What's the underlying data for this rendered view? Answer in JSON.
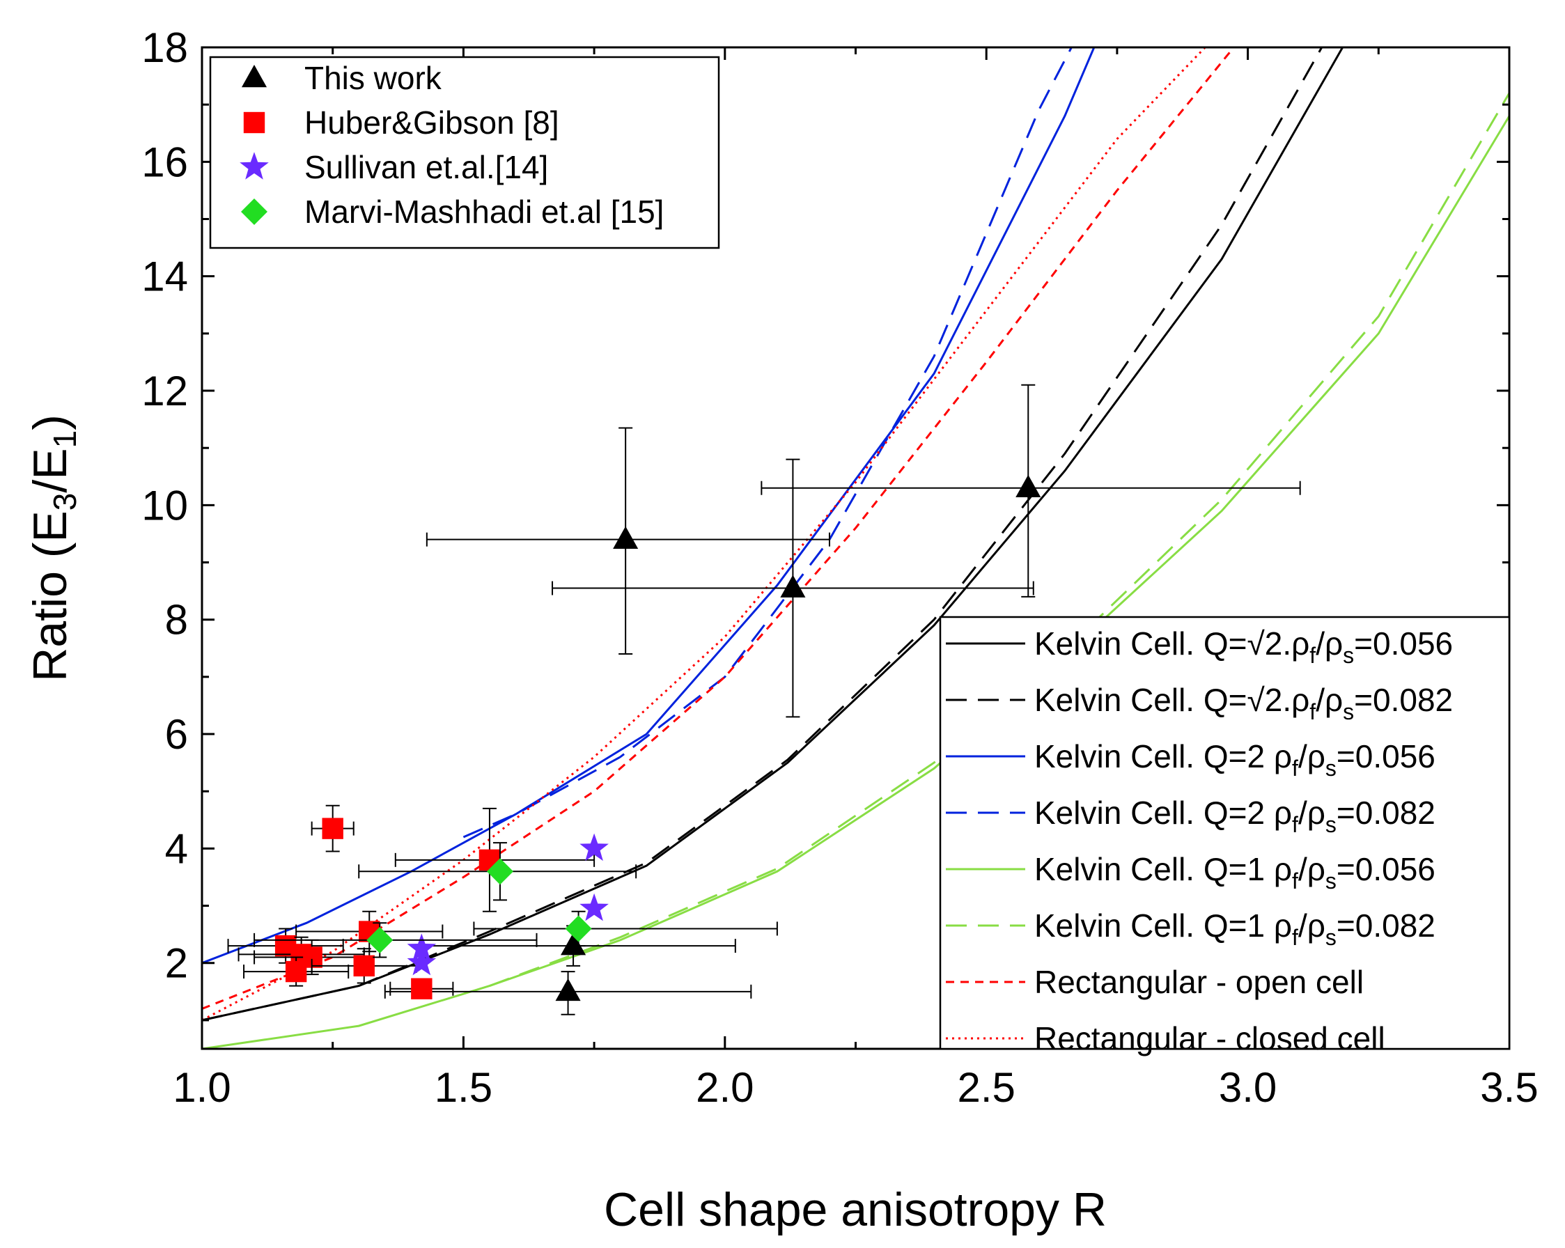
{
  "chart_data": {
    "type": "scatter",
    "xlabel": "Cell shape anisotropy R",
    "ylabel": "Ratio (E3/E1)",
    "ylabel_parts": {
      "main": "Ratio (E",
      "sub1": "3",
      "mid": "/E",
      "sub2": "1",
      "end": ")"
    },
    "xlim": [
      1.0,
      3.5
    ],
    "ylim": [
      0.5,
      18
    ],
    "xticks": [
      1.0,
      1.5,
      2.0,
      2.5,
      3.0,
      3.5
    ],
    "xtick_labels": [
      "1.0",
      "1.5",
      "2.0",
      "2.5",
      "3.0",
      "3.5"
    ],
    "yticks": [
      2,
      4,
      6,
      8,
      10,
      12,
      14,
      16,
      18
    ],
    "ytick_labels": [
      "2",
      "4",
      "6",
      "8",
      "10",
      "12",
      "14",
      "16",
      "18"
    ],
    "grid": false,
    "point_legend": {
      "placement": "top-left",
      "entries": [
        {
          "label": "This work",
          "marker": "triangle",
          "color": "#000000"
        },
        {
          "label": "Huber&Gibson [8]",
          "marker": "square",
          "color": "#ff0000"
        },
        {
          "label": "Sullivan et.al.[14]",
          "marker": "star",
          "color": "#6a2bff"
        },
        {
          "label": "Marvi-Mashhadi et.al [15]",
          "marker": "diamond",
          "color": "#22dd22"
        }
      ]
    },
    "line_legend": {
      "placement": "bottom-right",
      "entries": [
        {
          "prefix": "Kelvin Cell. Q=",
          "q": "√2.",
          "suffix": "0.056",
          "color": "#000000",
          "dash": "solid"
        },
        {
          "prefix": "Kelvin Cell. Q=",
          "q": "√2.",
          "suffix": "0.082",
          "color": "#000000",
          "dash": "dashed"
        },
        {
          "prefix": "Kelvin Cell. Q=",
          "q": "2 ",
          "suffix": "0.056",
          "color": "#0022dd",
          "dash": "solid"
        },
        {
          "prefix": "Kelvin Cell. Q=",
          "q": "2 ",
          "suffix": "0.082",
          "color": "#0022dd",
          "dash": "dashed"
        },
        {
          "prefix": "Kelvin Cell. Q=",
          "q": "1 ",
          "suffix": "0.056",
          "color": "#88dd44",
          "dash": "solid"
        },
        {
          "prefix": "Kelvin Cell. Q=",
          "q": "1 ",
          "suffix": "0.082",
          "color": "#88dd44",
          "dash": "dashed"
        },
        {
          "text": "Rectangular - open cell",
          "color": "#ff0000",
          "dash": "short-dash"
        },
        {
          "text": "Rectangular - closed cell",
          "color": "#ff0000",
          "dash": "dotted"
        }
      ]
    },
    "rho_label": {
      "rho": "ρ",
      "f": "f",
      "slash": "/",
      "s": "s",
      "eq": "="
    },
    "scatter_series": [
      {
        "name": "This work",
        "marker": "triangle",
        "color": "#000000",
        "points": [
          {
            "x": 1.81,
            "y": 9.4,
            "xerr": [
              1.43,
              2.2
            ],
            "yerr": [
              7.4,
              11.35
            ]
          },
          {
            "x": 2.13,
            "y": 8.55,
            "xerr": [
              1.67,
              2.59
            ],
            "yerr": [
              6.3,
              10.8
            ]
          },
          {
            "x": 2.58,
            "y": 10.3,
            "xerr": [
              2.07,
              3.1
            ],
            "yerr": [
              8.4,
              12.1
            ]
          },
          {
            "x": 1.71,
            "y": 2.3,
            "xerr": [
              1.42,
              2.02
            ],
            "yerr": [
              1.95,
              2.65
            ]
          },
          {
            "x": 1.7,
            "y": 1.5,
            "xerr": [
              1.35,
              2.05
            ],
            "yerr": [
              1.1,
              1.85
            ]
          }
        ]
      },
      {
        "name": "Huber&Gibson [8]",
        "marker": "square",
        "color": "#ff0000",
        "points": [
          {
            "x": 1.25,
            "y": 4.35,
            "xerr": [
              1.21,
              1.29
            ],
            "yerr": [
              3.95,
              4.75
            ]
          },
          {
            "x": 1.55,
            "y": 3.8,
            "xerr": [
              1.37,
              1.75
            ],
            "yerr": [
              2.9,
              4.7
            ]
          },
          {
            "x": 1.32,
            "y": 2.55,
            "xerr": [
              1.18,
              1.46
            ],
            "yerr": [
              2.2,
              2.9
            ]
          },
          {
            "x": 1.16,
            "y": 2.3,
            "xerr": [
              1.05,
              1.27
            ],
            "yerr": [
              2.0,
              2.6
            ]
          },
          {
            "x": 1.19,
            "y": 2.15,
            "xerr": [
              1.07,
              1.31
            ],
            "yerr": [
              1.85,
              2.45
            ]
          },
          {
            "x": 1.21,
            "y": 2.1,
            "xerr": [
              1.1,
              1.32
            ],
            "yerr": [
              1.8,
              2.4
            ]
          },
          {
            "x": 1.18,
            "y": 1.85,
            "xerr": [
              1.08,
              1.28
            ],
            "yerr": [
              1.6,
              2.1
            ]
          },
          {
            "x": 1.31,
            "y": 1.95,
            "xerr": [
              1.21,
              1.41
            ],
            "yerr": [
              1.65,
              2.25
            ]
          },
          {
            "x": 1.42,
            "y": 1.55,
            "xerr": [
              1.36,
              1.48
            ],
            "yerr": [
              1.4,
              1.7
            ]
          }
        ]
      },
      {
        "name": "Sullivan et.al.[14]",
        "marker": "star",
        "color": "#6a2bff",
        "points": [
          {
            "x": 1.75,
            "y": 4.0
          },
          {
            "x": 1.75,
            "y": 2.95
          },
          {
            "x": 1.42,
            "y": 2.25
          },
          {
            "x": 1.42,
            "y": 2.0
          }
        ]
      },
      {
        "name": "Marvi-Mashhadi et.al [15]",
        "marker": "diamond",
        "color": "#22dd22",
        "points": [
          {
            "x": 1.57,
            "y": 3.6,
            "xerr": [
              1.3,
              1.83
            ],
            "yerr": [
              3.1,
              4.1
            ]
          },
          {
            "x": 1.34,
            "y": 2.4,
            "xerr": [
              1.1,
              1.64
            ],
            "yerr": [
              2.1,
              2.7
            ]
          },
          {
            "x": 1.72,
            "y": 2.6,
            "xerr": [
              1.52,
              2.1
            ],
            "yerr": [
              2.3,
              2.9
            ]
          }
        ]
      }
    ],
    "line_series": [
      {
        "name": "Kelvin √2 0.056",
        "color": "#000000",
        "dash": "solid",
        "x": [
          1.0,
          1.3,
          1.55,
          1.85,
          2.12,
          2.4,
          2.65,
          2.95,
          3.2
        ],
        "y": [
          1.0,
          1.6,
          2.5,
          3.7,
          5.5,
          7.9,
          10.6,
          14.3,
          18.3
        ]
      },
      {
        "name": "Kelvin √2 0.082",
        "color": "#000000",
        "dash": "dashed",
        "x": [
          1.0,
          1.3,
          1.55,
          1.85,
          2.12,
          2.4,
          2.65,
          2.95,
          3.16
        ],
        "y": [
          1.0,
          1.6,
          2.55,
          3.75,
          5.55,
          8.0,
          10.9,
          14.9,
          18.3
        ]
      },
      {
        "name": "Kelvin 2 0.056",
        "color": "#0022dd",
        "dash": "solid",
        "x": [
          1.0,
          1.2,
          1.4,
          1.6,
          1.85,
          2.1,
          2.4,
          2.65,
          2.72
        ],
        "y": [
          2.0,
          2.7,
          3.6,
          4.6,
          6.0,
          8.6,
          12.3,
          16.8,
          18.3
        ]
      },
      {
        "name": "Kelvin 2 0.082",
        "color": "#0022dd",
        "dash": "dashed",
        "x": [
          1.5,
          1.6,
          1.8,
          2.0,
          2.2,
          2.4,
          2.6,
          2.68
        ],
        "y": [
          4.2,
          4.6,
          5.6,
          7.0,
          9.4,
          12.6,
          16.9,
          18.3
        ]
      },
      {
        "name": "Kelvin 1 0.056",
        "color": "#88dd44",
        "dash": "solid",
        "x": [
          1.0,
          1.3,
          1.55,
          1.8,
          2.1,
          2.4,
          2.7,
          2.95,
          3.25,
          3.5
        ],
        "y": [
          0.5,
          0.9,
          1.6,
          2.4,
          3.6,
          5.4,
          7.8,
          9.9,
          13.0,
          16.8
        ]
      },
      {
        "name": "Kelvin 1 0.082",
        "color": "#88dd44",
        "dash": "dashed",
        "x": [
          1.55,
          1.8,
          2.1,
          2.4,
          2.7,
          2.95,
          3.25,
          3.5
        ],
        "y": [
          1.6,
          2.45,
          3.65,
          5.5,
          7.9,
          10.1,
          13.3,
          17.2
        ]
      },
      {
        "name": "Rectangular - open cell",
        "color": "#ff0000",
        "dash": "short-dash",
        "x": [
          1.0,
          1.25,
          1.5,
          1.75,
          2.0,
          2.25,
          2.5,
          2.75,
          3.0
        ],
        "y": [
          1.2,
          2.1,
          3.5,
          5.0,
          7.0,
          9.6,
          12.5,
          15.5,
          18.3
        ]
      },
      {
        "name": "Rectangular - closed cell",
        "color": "#ff0000",
        "dash": "dotted",
        "x": [
          1.0,
          1.25,
          1.5,
          1.75,
          2.0,
          2.25,
          2.5,
          2.75,
          2.95
        ],
        "y": [
          1.0,
          2.2,
          3.8,
          5.6,
          7.7,
          10.4,
          13.4,
          16.4,
          18.3
        ]
      }
    ]
  }
}
